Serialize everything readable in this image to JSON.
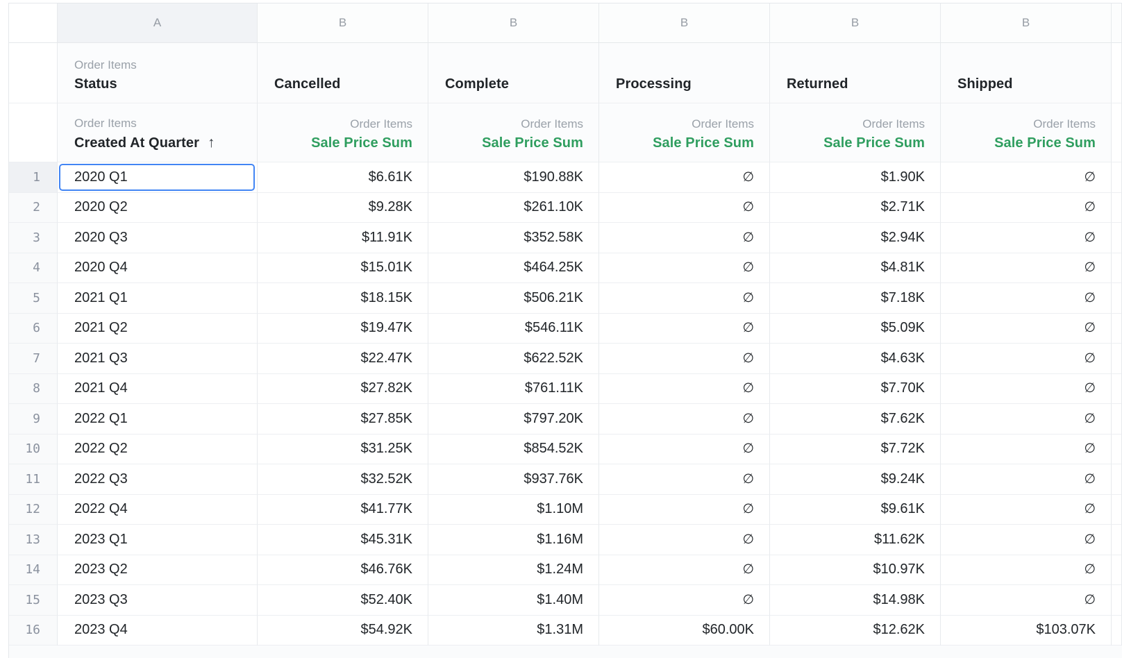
{
  "table": {
    "column_letters": [
      "A",
      "B",
      "B",
      "B",
      "B",
      "B"
    ],
    "pivot_header": {
      "group_label": "Order Items",
      "field": "Status",
      "values": [
        "Cancelled",
        "Complete",
        "Processing",
        "Returned",
        "Shipped"
      ]
    },
    "field_header": {
      "row_group_label": "Order Items",
      "row_field": "Created At Quarter",
      "sort_icon": "↑",
      "metric_group_label": "Order Items",
      "metric_field": "Sale Price Sum"
    },
    "empty_value_symbol": "∅",
    "selected_cell": {
      "row": 1,
      "column": "A",
      "value": "2020 Q1"
    },
    "rows": [
      {
        "num": "1",
        "quarter": "2020 Q1",
        "values": [
          "$6.61K",
          "$190.88K",
          "∅",
          "$1.90K",
          "∅"
        ]
      },
      {
        "num": "2",
        "quarter": "2020 Q2",
        "values": [
          "$9.28K",
          "$261.10K",
          "∅",
          "$2.71K",
          "∅"
        ]
      },
      {
        "num": "3",
        "quarter": "2020 Q3",
        "values": [
          "$11.91K",
          "$352.58K",
          "∅",
          "$2.94K",
          "∅"
        ]
      },
      {
        "num": "4",
        "quarter": "2020 Q4",
        "values": [
          "$15.01K",
          "$464.25K",
          "∅",
          "$4.81K",
          "∅"
        ]
      },
      {
        "num": "5",
        "quarter": "2021 Q1",
        "values": [
          "$18.15K",
          "$506.21K",
          "∅",
          "$7.18K",
          "∅"
        ]
      },
      {
        "num": "6",
        "quarter": "2021 Q2",
        "values": [
          "$19.47K",
          "$546.11K",
          "∅",
          "$5.09K",
          "∅"
        ]
      },
      {
        "num": "7",
        "quarter": "2021 Q3",
        "values": [
          "$22.47K",
          "$622.52K",
          "∅",
          "$4.63K",
          "∅"
        ]
      },
      {
        "num": "8",
        "quarter": "2021 Q4",
        "values": [
          "$27.82K",
          "$761.11K",
          "∅",
          "$7.70K",
          "∅"
        ]
      },
      {
        "num": "9",
        "quarter": "2022 Q1",
        "values": [
          "$27.85K",
          "$797.20K",
          "∅",
          "$7.62K",
          "∅"
        ]
      },
      {
        "num": "10",
        "quarter": "2022 Q2",
        "values": [
          "$31.25K",
          "$854.52K",
          "∅",
          "$7.72K",
          "∅"
        ]
      },
      {
        "num": "11",
        "quarter": "2022 Q3",
        "values": [
          "$32.52K",
          "$937.76K",
          "∅",
          "$9.24K",
          "∅"
        ]
      },
      {
        "num": "12",
        "quarter": "2022 Q4",
        "values": [
          "$41.77K",
          "$1.10M",
          "∅",
          "$9.61K",
          "∅"
        ]
      },
      {
        "num": "13",
        "quarter": "2023 Q1",
        "values": [
          "$45.31K",
          "$1.16M",
          "∅",
          "$11.62K",
          "∅"
        ]
      },
      {
        "num": "14",
        "quarter": "2023 Q2",
        "values": [
          "$46.76K",
          "$1.24M",
          "∅",
          "$10.97K",
          "∅"
        ]
      },
      {
        "num": "15",
        "quarter": "2023 Q3",
        "values": [
          "$52.40K",
          "$1.40M",
          "∅",
          "$14.98K",
          "∅"
        ]
      },
      {
        "num": "16",
        "quarter": "2023 Q4",
        "values": [
          "$54.92K",
          "$1.31M",
          "$60.00K",
          "$12.62K",
          "$103.07K"
        ]
      }
    ]
  },
  "colors": {
    "metric_green": "#2f9e5f",
    "selection_blue": "#4285f4",
    "highlight_header_bg": "#f1f3f6",
    "row_number_bg": "#f9fafb",
    "grid_border": "#e7eaed"
  }
}
